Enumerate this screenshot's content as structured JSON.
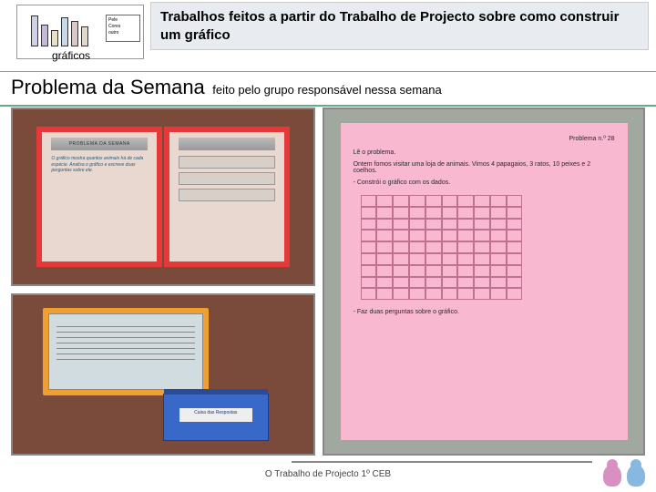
{
  "thumb": {
    "caption": "gráficos",
    "legend": [
      "Pele",
      "Cores",
      "outro"
    ],
    "bars": [
      85,
      60,
      45,
      80,
      70,
      55
    ],
    "bar_colors": [
      "#d0d0e8",
      "#c8b8d8",
      "#e8e0c8",
      "#c8d8e8",
      "#d8c8c8",
      "#e0d8c8"
    ]
  },
  "title": "Trabalhos feitos a partir do Trabalho de Projecto sobre como construir um gráfico",
  "subtitle": {
    "main": "Problema da Semana",
    "sub": "feito pelo grupo responsável nessa semana"
  },
  "photo1": {
    "header": "PROBLEMA DA SEMANA",
    "handwriting": "O gráfico mostra quantos animais há de cada espécie. Analisa o gráfico e escreve duas perguntas sobre ele."
  },
  "photo2": {
    "box_label": "Caixa das Respostas"
  },
  "photo3": {
    "title": "Problema n.º 28",
    "lines": [
      "Lê o problema.",
      "Ontem fomos visitar uma loja de animais. Vimos 4 papagaios, 3 ratos, 10 peixes e 2 coelhos.",
      "- Constrói o gráfico com os dados.",
      "- Faz duas perguntas sobre o gráfico."
    ],
    "grid": {
      "cols": 10,
      "rows": 9,
      "cell_border": "#c07090"
    }
  },
  "footer": "O Trabalho de Projecto 1º CEB",
  "colors": {
    "title_bg": "#e8ecf0",
    "accent_green": "#66aa88",
    "wood": "#7a4a3a",
    "folder_red": "#e63838",
    "orange": "#f0a030",
    "blue_box": "#3868c8",
    "pink": "#f8b8d0"
  }
}
